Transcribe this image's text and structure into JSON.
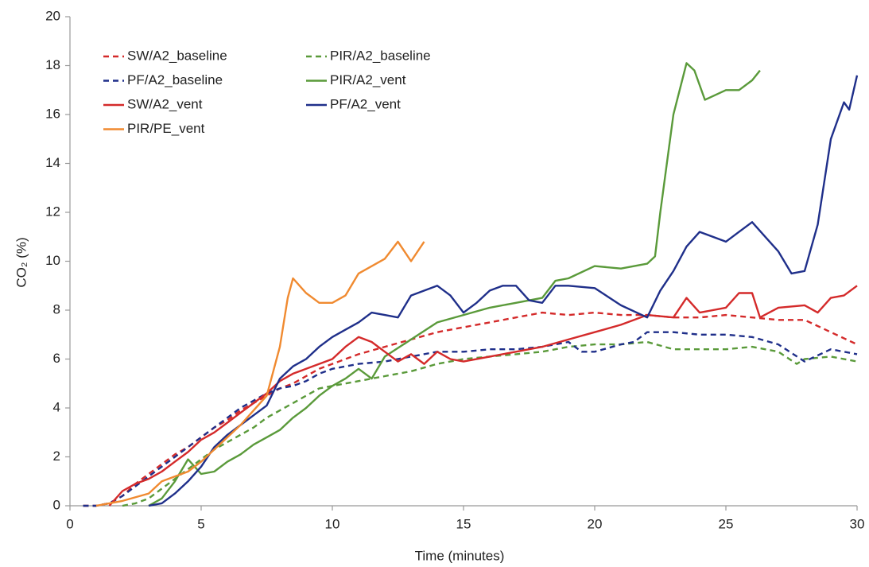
{
  "chart_data": {
    "type": "line",
    "xlabel": "Time (minutes)",
    "ylabel": "CO₂ (%)",
    "xlim": [
      0,
      30
    ],
    "xticks": [
      0,
      5,
      10,
      15,
      20,
      25,
      30
    ],
    "ylim": [
      0,
      20
    ],
    "yticks": [
      0,
      2,
      4,
      6,
      8,
      10,
      12,
      14,
      16,
      18,
      20
    ],
    "grid": false,
    "legend": "upper left",
    "series": [
      {
        "name": "SW/A2_baseline",
        "color": "#d42a2a",
        "dashed": true,
        "x": [
          0.5,
          1,
          1.5,
          2,
          2.5,
          3,
          3.5,
          4,
          4.5,
          5,
          5.5,
          6,
          6.5,
          7,
          7.5,
          8,
          8.5,
          9,
          9.5,
          10,
          11,
          12,
          13,
          14,
          15,
          16,
          17,
          18,
          19,
          20,
          21,
          22,
          23,
          24,
          25,
          26,
          27,
          28,
          29,
          30
        ],
        "values": [
          0,
          0,
          0.1,
          0.4,
          0.9,
          1.3,
          1.7,
          2.1,
          2.4,
          2.8,
          3.2,
          3.5,
          3.9,
          4.2,
          4.5,
          4.8,
          5.0,
          5.3,
          5.6,
          5.8,
          6.2,
          6.5,
          6.8,
          7.1,
          7.3,
          7.5,
          7.7,
          7.9,
          7.8,
          7.9,
          7.8,
          7.8,
          7.7,
          7.7,
          7.8,
          7.7,
          7.6,
          7.6,
          7.1,
          6.6
        ]
      },
      {
        "name": "PIR/A2_baseline",
        "color": "#5a9a3a",
        "dashed": true,
        "x": [
          2,
          2.5,
          3,
          3.5,
          4,
          4.5,
          5,
          5.5,
          6,
          6.5,
          7,
          7.5,
          8,
          8.5,
          9,
          9.5,
          10,
          11,
          12,
          13,
          14,
          15,
          16,
          17,
          18,
          19,
          20,
          21,
          22,
          23,
          24,
          25,
          26,
          27,
          27.7,
          28,
          29,
          30
        ],
        "values": [
          0,
          0.1,
          0.3,
          0.7,
          1.1,
          1.5,
          1.9,
          2.3,
          2.6,
          2.9,
          3.2,
          3.6,
          3.9,
          4.2,
          4.5,
          4.8,
          4.9,
          5.1,
          5.3,
          5.5,
          5.8,
          6.0,
          6.1,
          6.2,
          6.3,
          6.5,
          6.6,
          6.6,
          6.7,
          6.4,
          6.4,
          6.4,
          6.5,
          6.3,
          5.8,
          6.0,
          6.1,
          5.9
        ]
      },
      {
        "name": "PF/A2_baseline",
        "color": "#1f2f8a",
        "dashed": true,
        "x": [
          0.5,
          1,
          1.5,
          2,
          2.5,
          3,
          3.5,
          4,
          4.5,
          5,
          5.5,
          6,
          6.5,
          7,
          7.5,
          8,
          8.5,
          9,
          9.5,
          10,
          11,
          12,
          13,
          14,
          15,
          16,
          17,
          18,
          19,
          19.5,
          20,
          21,
          21.5,
          22,
          23,
          24,
          25,
          26,
          27,
          28,
          29,
          30
        ],
        "values": [
          0,
          0,
          0.1,
          0.4,
          0.8,
          1.2,
          1.6,
          2.0,
          2.4,
          2.8,
          3.2,
          3.6,
          4.0,
          4.3,
          4.6,
          4.8,
          4.9,
          5.1,
          5.4,
          5.6,
          5.8,
          5.9,
          6.1,
          6.3,
          6.3,
          6.4,
          6.4,
          6.5,
          6.7,
          6.3,
          6.3,
          6.6,
          6.7,
          7.1,
          7.1,
          7.0,
          7.0,
          6.9,
          6.6,
          5.9,
          6.4,
          6.2
        ]
      },
      {
        "name": "PIR/A2_vent",
        "color": "#5a9a3a",
        "dashed": false,
        "x": [
          3,
          3.5,
          4,
          4.5,
          5,
          5.5,
          6,
          6.5,
          7,
          7.5,
          8,
          8.5,
          9,
          9.5,
          10,
          10.5,
          11,
          11.5,
          12,
          13,
          14,
          15,
          16,
          17,
          18,
          18.5,
          19,
          20,
          21,
          22,
          22.3,
          22.5,
          23,
          23.5,
          23.8,
          24.2,
          25,
          25.5,
          26,
          26.3
        ],
        "values": [
          0,
          0.3,
          1.0,
          1.9,
          1.3,
          1.4,
          1.8,
          2.1,
          2.5,
          2.8,
          3.1,
          3.6,
          4.0,
          4.5,
          4.9,
          5.2,
          5.6,
          5.2,
          6.1,
          6.8,
          7.5,
          7.8,
          8.1,
          8.3,
          8.5,
          9.2,
          9.3,
          9.8,
          9.7,
          9.9,
          10.2,
          12,
          16,
          18.1,
          17.8,
          16.6,
          17,
          17.0,
          17.4,
          17.8
        ]
      },
      {
        "name": "SW/A2_vent",
        "color": "#d42a2a",
        "dashed": false,
        "x": [
          1.5,
          2,
          2.5,
          3,
          3.5,
          4,
          4.5,
          5,
          5.5,
          6,
          6.5,
          7,
          7.5,
          8,
          8.5,
          9,
          9.5,
          10,
          10.5,
          11,
          11.5,
          12,
          12.5,
          13,
          13.5,
          14,
          14.5,
          15,
          16,
          17,
          18,
          19,
          20,
          21,
          22,
          23,
          23.5,
          24,
          25,
          25.5,
          26,
          26.3,
          27,
          28,
          28.5,
          29,
          29.5,
          30
        ],
        "values": [
          0,
          0.6,
          0.9,
          1.1,
          1.4,
          1.8,
          2.2,
          2.7,
          3.0,
          3.4,
          3.8,
          4.2,
          4.6,
          5.1,
          5.4,
          5.6,
          5.8,
          6.0,
          6.5,
          6.9,
          6.7,
          6.3,
          5.9,
          6.2,
          5.8,
          6.3,
          6.0,
          5.9,
          6.1,
          6.3,
          6.5,
          6.8,
          7.1,
          7.4,
          7.8,
          7.7,
          8.5,
          7.9,
          8.1,
          8.7,
          8.7,
          7.7,
          8.1,
          8.2,
          7.9,
          8.5,
          8.6,
          9.0
        ]
      },
      {
        "name": "PF/A2_vent",
        "color": "#1f2f8a",
        "dashed": false,
        "x": [
          3,
          3.5,
          4,
          4.5,
          5,
          5.5,
          6,
          6.5,
          7,
          7.5,
          8,
          8.5,
          9,
          9.5,
          10,
          10.5,
          11,
          11.5,
          12,
          12.5,
          13,
          14,
          14.5,
          15,
          15.5,
          16,
          16.5,
          17,
          17.5,
          18,
          18.5,
          19,
          20,
          21,
          22,
          22.5,
          23,
          23.5,
          24,
          25,
          25.5,
          26,
          26.5,
          27,
          27.5,
          28,
          28.5,
          29,
          29.5,
          29.7,
          30
        ],
        "values": [
          0,
          0.1,
          0.5,
          1.0,
          1.6,
          2.4,
          2.9,
          3.3,
          3.7,
          4.1,
          5.2,
          5.7,
          6.0,
          6.5,
          6.9,
          7.2,
          7.5,
          7.9,
          7.8,
          7.7,
          8.6,
          9.0,
          8.6,
          7.9,
          8.3,
          8.8,
          9.0,
          9.0,
          8.4,
          8.3,
          9.0,
          9.0,
          8.9,
          8.2,
          7.7,
          8.8,
          9.6,
          10.6,
          11.2,
          10.8,
          11.2,
          11.6,
          11,
          10.4,
          9.5,
          9.6,
          11.5,
          15,
          16.5,
          16.2,
          17.6
        ]
      },
      {
        "name": "PIR/PE_vent",
        "color": "#f08a30",
        "dashed": false,
        "x": [
          1,
          2,
          3,
          3.5,
          4,
          4.5,
          5,
          5.5,
          6,
          6.5,
          7,
          7.5,
          8,
          8.3,
          8.5,
          9,
          9.5,
          10,
          10.5,
          11,
          12,
          12.5,
          13,
          13.5
        ],
        "values": [
          0,
          0.2,
          0.5,
          1.0,
          1.2,
          1.4,
          1.8,
          2.3,
          2.8,
          3.3,
          3.9,
          4.5,
          6.5,
          8.5,
          9.3,
          8.7,
          8.3,
          8.3,
          8.6,
          9.5,
          10.1,
          10.8,
          10.0,
          10.8
        ]
      }
    ]
  }
}
